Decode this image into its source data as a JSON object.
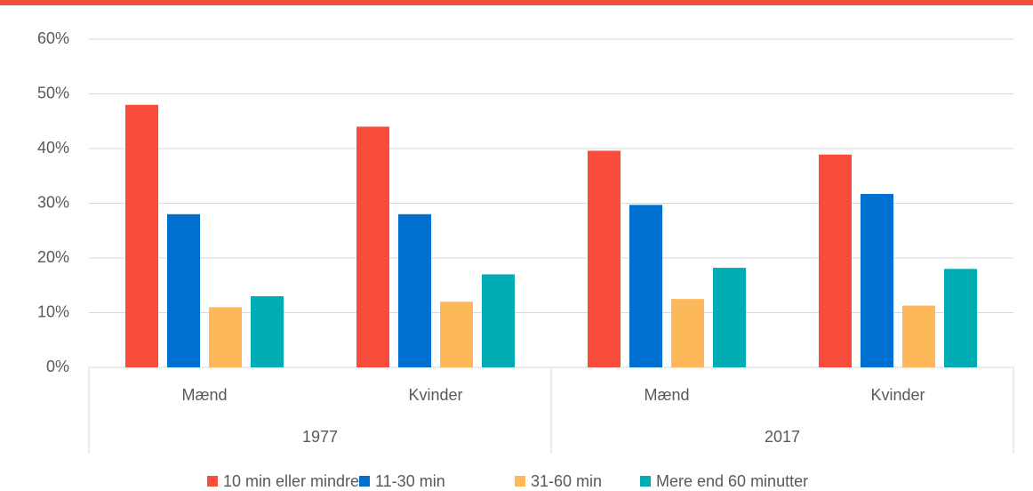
{
  "chart_data": {
    "type": "bar",
    "categories": [
      "Mænd",
      "Kvinder",
      "Mænd",
      "Kvinder"
    ],
    "category_groups": [
      "1977",
      "2017"
    ],
    "series": [
      {
        "name": "10 min eller mindre",
        "color": "#f94c3c",
        "values": [
          48,
          44,
          39.6,
          38.9
        ]
      },
      {
        "name": "11-30 min",
        "color": "#0070d0",
        "values": [
          28,
          28,
          29.7,
          31.7
        ]
      },
      {
        "name": "31-60 min",
        "color": "#fdb85a",
        "values": [
          11,
          12,
          12.5,
          11.3
        ]
      },
      {
        "name": "Mere end 60 minutter",
        "color": "#00adb5",
        "values": [
          13,
          17,
          18.2,
          18.0
        ]
      }
    ],
    "ylim": [
      0,
      60
    ],
    "yticks": [
      {
        "value": 0,
        "label": "0%"
      },
      {
        "value": 10,
        "label": "10%"
      },
      {
        "value": 20,
        "label": "20%"
      },
      {
        "value": 30,
        "label": "30%"
      },
      {
        "value": 40,
        "label": "40%"
      },
      {
        "value": 50,
        "label": "50%"
      },
      {
        "value": 60,
        "label": "60%"
      }
    ],
    "grid": true,
    "legend": "bottom"
  }
}
